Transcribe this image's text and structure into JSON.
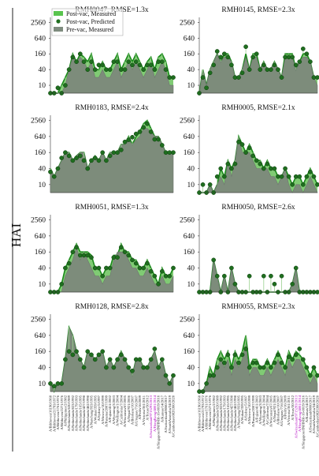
{
  "figure": {
    "ylabel": "HAI"
  },
  "legend": {
    "items": [
      {
        "label": "Post-vac, Measured",
        "color": "#59c44e",
        "kind": "area"
      },
      {
        "label": "Post-vac, Predicted",
        "color": "#1f6e1f",
        "kind": "dot"
      },
      {
        "label": "Pre-vac, Measured",
        "color": "#7f8c7f",
        "kind": "area"
      }
    ]
  },
  "colors": {
    "post_measured": "#6ac25c",
    "post_line": "#1a8a1a",
    "pre_measured": "#7c857c",
    "predicted": "#1f6e1f",
    "residual": "#9ad08f",
    "highlight": "#b000c0"
  },
  "yticks": [
    "2560",
    "640",
    "160",
    "40",
    "10"
  ],
  "strains": [
    "A/Bilthoven/16190/1968",
    "A/Bilthoven/21793/1972",
    "A/Bilthoven/1761/1976",
    "A/Bilthoven/2271/1976",
    "A/Philippines/2/1982",
    "A/Netherlands/620/1989",
    "A/Netherlands/823/1992",
    "A/Netherlands/179/1993",
    "A/Netherlands/165/1995",
    "A/Netherlands/427/1998",
    "A/Netherlands/462/1998",
    "A/Nanchang/933/1995",
    "A/Wuhan/359/1995",
    "A/Sydney/5/1997",
    "A/Moscow/10/1999",
    "A/Panama/2007/1999",
    "A/Fujian/411/2002",
    "A/Wyoming/3/2003",
    "A/Wellington/1/2004",
    "A/California/7/2004",
    "A/Wisconsin/67/2005",
    "A/Nepal/921/2006",
    "A/Brisbane/10/2007",
    "A/Uruguay/716/2007",
    "A/Perth/16/2009",
    "A/Victoria/361/2011",
    "A/Texas/50/2012",
    "A/Switzerland/9715293/2013",
    "A/HongKong/4801/2014",
    "A/Singapore/INFIMH-16-0019/2016",
    "A/Kansas/14/2017",
    "A/Switzerland/8060/2017",
    "A/SouthAustralia/34/2019",
    "A/Cambodia/e0826360/2020"
  ],
  "highlight_strains": [
    27,
    28
  ],
  "chart_data": [
    {
      "type": "area",
      "title": "RMH0047, RMSE=1.3x",
      "ylim": [
        5,
        4000
      ],
      "y_scale": "log2",
      "series": [
        {
          "name": "Post-vac, Measured",
          "values": [
            5,
            5,
            5,
            10,
            20,
            40,
            160,
            80,
            160,
            120,
            80,
            160,
            40,
            40,
            80,
            40,
            40,
            80,
            160,
            40,
            80,
            160,
            80,
            160,
            80,
            40,
            80,
            120,
            40,
            120,
            160,
            80,
            20,
            20
          ]
        },
        {
          "name": "Post-vac, Predicted",
          "values": [
            5,
            5,
            8,
            5,
            10,
            40,
            120,
            80,
            160,
            80,
            40,
            80,
            40,
            60,
            60,
            40,
            40,
            80,
            80,
            40,
            40,
            80,
            60,
            80,
            60,
            40,
            60,
            60,
            40,
            80,
            80,
            40,
            20,
            20
          ]
        },
        {
          "name": "Pre-vac, Measured",
          "values": [
            5,
            5,
            5,
            5,
            10,
            40,
            120,
            80,
            120,
            80,
            40,
            80,
            20,
            20,
            40,
            20,
            20,
            40,
            80,
            20,
            40,
            80,
            40,
            80,
            40,
            20,
            40,
            80,
            20,
            40,
            80,
            40,
            10,
            10
          ]
        }
      ]
    },
    {
      "type": "area",
      "title": "RMH0145, RMSE=2.3x",
      "ylim": [
        5,
        4000
      ],
      "y_scale": "log2",
      "series": [
        {
          "name": "Post-vac, Measured",
          "values": [
            5,
            40,
            10,
            40,
            80,
            160,
            80,
            160,
            160,
            80,
            20,
            20,
            40,
            160,
            40,
            160,
            160,
            40,
            80,
            40,
            40,
            80,
            40,
            20,
            160,
            160,
            160,
            40,
            80,
            160,
            160,
            80,
            20,
            20
          ]
        },
        {
          "name": "Post-vac, Predicted",
          "values": [
            5,
            20,
            8,
            30,
            60,
            200,
            120,
            160,
            120,
            60,
            20,
            20,
            30,
            300,
            40,
            120,
            160,
            40,
            60,
            40,
            40,
            60,
            40,
            20,
            120,
            120,
            120,
            60,
            80,
            250,
            160,
            80,
            20,
            20
          ]
        },
        {
          "name": "Pre-vac, Measured",
          "values": [
            5,
            40,
            10,
            40,
            80,
            160,
            80,
            120,
            120,
            80,
            20,
            20,
            40,
            120,
            40,
            120,
            120,
            40,
            80,
            40,
            40,
            80,
            40,
            20,
            120,
            120,
            120,
            40,
            80,
            120,
            120,
            80,
            20,
            10
          ]
        }
      ]
    },
    {
      "type": "area",
      "title": "RMH0183, RMSE=2.4x",
      "ylim": [
        5,
        4000
      ],
      "y_scale": "log2",
      "series": [
        {
          "name": "Post-vac, Measured",
          "values": [
            40,
            20,
            40,
            80,
            160,
            160,
            80,
            120,
            160,
            160,
            40,
            80,
            120,
            80,
            160,
            80,
            160,
            160,
            160,
            320,
            320,
            640,
            320,
            640,
            960,
            1920,
            2560,
            1280,
            640,
            640,
            320,
            160,
            160,
            160
          ]
        },
        {
          "name": "Post-vac, Predicted",
          "values": [
            30,
            20,
            40,
            100,
            160,
            120,
            80,
            100,
            120,
            80,
            40,
            80,
            100,
            80,
            160,
            80,
            120,
            160,
            160,
            200,
            400,
            480,
            600,
            800,
            960,
            1400,
            1920,
            960,
            500,
            500,
            300,
            160,
            160,
            160
          ]
        },
        {
          "name": "Pre-vac, Measured",
          "values": [
            40,
            20,
            40,
            80,
            160,
            160,
            80,
            120,
            160,
            160,
            40,
            80,
            120,
            80,
            160,
            80,
            160,
            160,
            160,
            320,
            320,
            480,
            320,
            480,
            640,
            1280,
            1280,
            960,
            640,
            640,
            320,
            160,
            160,
            160
          ]
        }
      ]
    },
    {
      "type": "area",
      "title": "RMH0005, RMSE=2.1x",
      "ylim": [
        5,
        4000
      ],
      "y_scale": "log2",
      "series": [
        {
          "name": "Post-vac, Measured",
          "values": [
            5,
            5,
            5,
            10,
            5,
            10,
            40,
            20,
            80,
            40,
            80,
            640,
            320,
            160,
            320,
            160,
            80,
            80,
            40,
            80,
            40,
            40,
            20,
            20,
            40,
            20,
            10,
            20,
            20,
            10,
            20,
            40,
            20,
            10
          ]
        },
        {
          "name": "Post-vac, Predicted",
          "values": [
            5,
            10,
            5,
            10,
            5,
            20,
            40,
            20,
            60,
            40,
            60,
            400,
            320,
            160,
            240,
            120,
            80,
            60,
            40,
            60,
            40,
            40,
            20,
            20,
            40,
            20,
            10,
            20,
            20,
            10,
            20,
            30,
            20,
            10
          ]
        },
        {
          "name": "Pre-vac, Measured",
          "values": [
            5,
            5,
            5,
            10,
            5,
            10,
            20,
            10,
            80,
            20,
            80,
            640,
            160,
            160,
            160,
            80,
            40,
            40,
            40,
            40,
            20,
            20,
            10,
            20,
            40,
            10,
            5,
            10,
            10,
            5,
            10,
            20,
            10,
            5
          ]
        }
      ]
    },
    {
      "type": "area",
      "title": "RMH0051, RMSE=1.3x",
      "ylim": [
        5,
        4000
      ],
      "y_scale": "log2",
      "series": [
        {
          "name": "Post-vac, Measured",
          "values": [
            5,
            5,
            5,
            10,
            40,
            80,
            160,
            320,
            160,
            160,
            160,
            120,
            40,
            40,
            20,
            40,
            40,
            120,
            120,
            320,
            160,
            160,
            80,
            80,
            40,
            40,
            80,
            40,
            20,
            10,
            40,
            20,
            20,
            40
          ]
        },
        {
          "name": "Post-vac, Predicted",
          "values": [
            5,
            5,
            5,
            10,
            40,
            60,
            160,
            240,
            120,
            120,
            120,
            100,
            40,
            40,
            20,
            40,
            40,
            100,
            100,
            240,
            160,
            120,
            80,
            60,
            40,
            40,
            60,
            30,
            20,
            10,
            30,
            20,
            20,
            40
          ]
        },
        {
          "name": "Pre-vac, Measured",
          "values": [
            5,
            5,
            5,
            5,
            20,
            40,
            80,
            240,
            80,
            160,
            80,
            40,
            20,
            20,
            10,
            20,
            20,
            80,
            160,
            160,
            160,
            80,
            40,
            40,
            20,
            20,
            40,
            20,
            10,
            10,
            20,
            10,
            10,
            20
          ]
        }
      ]
    },
    {
      "type": "area",
      "title": "RMH0050, RMSE=2.6x",
      "ylim": [
        5,
        4000
      ],
      "y_scale": "log2",
      "series": [
        {
          "name": "Post-vac, Measured",
          "values": [
            5,
            5,
            5,
            5,
            80,
            20,
            5,
            20,
            5,
            40,
            10,
            5,
            5,
            5,
            5,
            5,
            5,
            5,
            5,
            5,
            5,
            5,
            5,
            5,
            5,
            5,
            10,
            40,
            5,
            5,
            5,
            5,
            5,
            5
          ]
        },
        {
          "name": "Post-vac, Predicted",
          "values": [
            5,
            5,
            5,
            5,
            80,
            20,
            5,
            20,
            5,
            40,
            10,
            5,
            5,
            5,
            20,
            5,
            5,
            5,
            20,
            5,
            20,
            10,
            5,
            20,
            5,
            5,
            10,
            40,
            5,
            5,
            5,
            5,
            5,
            5
          ]
        },
        {
          "name": "Pre-vac, Measured",
          "values": [
            5,
            5,
            5,
            5,
            80,
            20,
            5,
            20,
            5,
            40,
            10,
            5,
            5,
            5,
            5,
            5,
            5,
            5,
            5,
            5,
            5,
            5,
            5,
            5,
            5,
            5,
            10,
            40,
            5,
            5,
            5,
            5,
            5,
            5
          ]
        }
      ]
    },
    {
      "type": "area",
      "title": "RMH0128, RMSE=2.8x",
      "ylim": [
        5,
        4000
      ],
      "y_scale": "log2",
      "series": [
        {
          "name": "Post-vac, Measured",
          "values": [
            10,
            5,
            10,
            10,
            80,
            1280,
            640,
            160,
            80,
            40,
            160,
            120,
            80,
            120,
            160,
            40,
            80,
            40,
            80,
            160,
            80,
            40,
            20,
            80,
            80,
            40,
            40,
            80,
            160,
            40,
            80,
            20,
            10,
            20
          ]
        },
        {
          "name": "Post-vac, Predicted",
          "values": [
            10,
            8,
            10,
            10,
            80,
            160,
            120,
            160,
            80,
            40,
            160,
            120,
            80,
            120,
            160,
            40,
            80,
            40,
            80,
            120,
            80,
            40,
            30,
            80,
            80,
            40,
            40,
            80,
            200,
            40,
            80,
            20,
            10,
            20
          ]
        },
        {
          "name": "Pre-vac, Measured",
          "values": [
            10,
            5,
            10,
            10,
            80,
            1280,
            640,
            160,
            80,
            40,
            160,
            120,
            80,
            120,
            160,
            40,
            80,
            40,
            80,
            160,
            80,
            40,
            20,
            80,
            80,
            40,
            40,
            80,
            160,
            40,
            80,
            20,
            10,
            20
          ]
        }
      ]
    },
    {
      "type": "area",
      "title": "RMH0055, RMSE=2.3x",
      "ylim": [
        5,
        4000
      ],
      "y_scale": "log2",
      "series": [
        {
          "name": "Post-vac, Measured",
          "values": [
            5,
            5,
            10,
            40,
            20,
            80,
            160,
            80,
            160,
            40,
            160,
            80,
            160,
            640,
            40,
            80,
            80,
            40,
            40,
            80,
            40,
            80,
            160,
            80,
            40,
            160,
            80,
            160,
            120,
            80,
            40,
            20,
            40,
            20
          ]
        },
        {
          "name": "Post-vac, Predicted",
          "values": [
            5,
            5,
            10,
            20,
            20,
            40,
            80,
            60,
            120,
            40,
            120,
            60,
            120,
            200,
            40,
            60,
            60,
            40,
            40,
            60,
            40,
            60,
            120,
            60,
            40,
            100,
            80,
            120,
            200,
            80,
            40,
            20,
            40,
            20
          ]
        },
        {
          "name": "Pre-vac, Measured",
          "values": [
            5,
            5,
            10,
            20,
            20,
            40,
            80,
            40,
            80,
            20,
            80,
            40,
            80,
            320,
            20,
            40,
            40,
            20,
            20,
            40,
            20,
            40,
            80,
            40,
            20,
            80,
            40,
            80,
            80,
            40,
            20,
            10,
            20,
            10
          ]
        }
      ]
    }
  ]
}
